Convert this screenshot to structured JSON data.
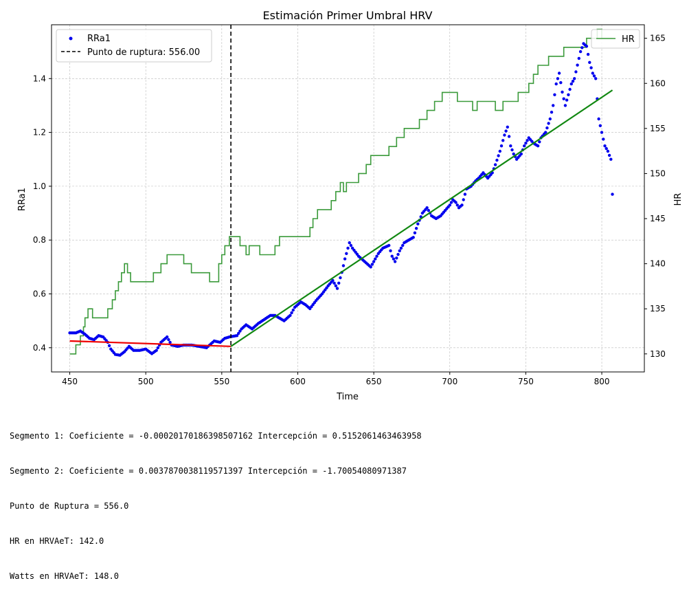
{
  "chart_data": {
    "type": "scatter",
    "title": "Estimación Primer Umbral HRV",
    "xlabel": "Time",
    "ylabel": "RRa1",
    "y2label": "HR",
    "xlim": [
      438,
      828
    ],
    "ylim": [
      0.31,
      1.6
    ],
    "y2lim": [
      128,
      166.5
    ],
    "xticks": [
      450,
      500,
      550,
      600,
      650,
      700,
      750,
      800
    ],
    "yticks": [
      0.4,
      0.6,
      0.8,
      1.0,
      1.2,
      1.4
    ],
    "yticklabels": [
      "0.4",
      "0.6",
      "0.8",
      "1.0",
      "1.2",
      "1.4"
    ],
    "y2ticks": [
      130,
      135,
      140,
      145,
      150,
      155,
      160,
      165
    ],
    "grid": true,
    "legend_left": {
      "placement": "upper-left",
      "entries": [
        "RRa1",
        "Punto de ruptura: 556.00"
      ]
    },
    "legend_right": {
      "placement": "upper-right",
      "entries": [
        "HR"
      ]
    },
    "colors": {
      "scatter": "#0000ee",
      "hr": "#3a9a3a",
      "segment1": "#ee0000",
      "segment2": "#118811",
      "breakpoint": "#000000"
    },
    "breakpoint": 556.0,
    "segment1": {
      "x": [
        450,
        556
      ],
      "y": [
        0.425,
        0.405
      ]
    },
    "segment2": {
      "x": [
        556,
        807
      ],
      "y": [
        0.405,
        1.357
      ]
    },
    "scatter_anchors": [
      [
        450,
        0.455
      ],
      [
        454,
        0.455
      ],
      [
        457,
        0.462
      ],
      [
        460,
        0.45
      ],
      [
        463,
        0.435
      ],
      [
        466,
        0.43
      ],
      [
        469,
        0.445
      ],
      [
        472,
        0.44
      ],
      [
        475,
        0.42
      ],
      [
        477,
        0.395
      ],
      [
        480,
        0.375
      ],
      [
        483,
        0.372
      ],
      [
        486,
        0.385
      ],
      [
        489,
        0.405
      ],
      [
        492,
        0.39
      ],
      [
        496,
        0.39
      ],
      [
        500,
        0.395
      ],
      [
        504,
        0.378
      ],
      [
        507,
        0.39
      ],
      [
        510,
        0.42
      ],
      [
        514,
        0.44
      ],
      [
        517,
        0.41
      ],
      [
        521,
        0.405
      ],
      [
        525,
        0.41
      ],
      [
        530,
        0.41
      ],
      [
        535,
        0.405
      ],
      [
        540,
        0.4
      ],
      [
        545,
        0.425
      ],
      [
        549,
        0.42
      ],
      [
        552,
        0.435
      ],
      [
        555,
        0.44
      ],
      [
        560,
        0.445
      ],
      [
        563,
        0.47
      ],
      [
        566,
        0.485
      ],
      [
        570,
        0.47
      ],
      [
        574,
        0.49
      ],
      [
        578,
        0.505
      ],
      [
        582,
        0.52
      ],
      [
        585,
        0.52
      ],
      [
        588,
        0.51
      ],
      [
        591,
        0.5
      ],
      [
        595,
        0.52
      ],
      [
        598,
        0.55
      ],
      [
        602,
        0.57
      ],
      [
        605,
        0.56
      ],
      [
        608,
        0.545
      ],
      [
        612,
        0.575
      ],
      [
        616,
        0.6
      ],
      [
        620,
        0.63
      ],
      [
        623,
        0.65
      ],
      [
        626,
        0.62
      ],
      [
        629,
        0.68
      ],
      [
        631,
        0.73
      ],
      [
        634,
        0.79
      ],
      [
        636,
        0.77
      ],
      [
        640,
        0.74
      ],
      [
        644,
        0.72
      ],
      [
        648,
        0.7
      ],
      [
        650,
        0.72
      ],
      [
        653,
        0.75
      ],
      [
        656,
        0.77
      ],
      [
        660,
        0.78
      ],
      [
        662,
        0.74
      ],
      [
        664,
        0.72
      ],
      [
        667,
        0.76
      ],
      [
        670,
        0.79
      ],
      [
        673,
        0.8
      ],
      [
        676,
        0.81
      ],
      [
        679,
        0.86
      ],
      [
        682,
        0.9
      ],
      [
        685,
        0.92
      ],
      [
        688,
        0.89
      ],
      [
        691,
        0.88
      ],
      [
        694,
        0.89
      ],
      [
        697,
        0.91
      ],
      [
        700,
        0.93
      ],
      [
        702,
        0.95
      ],
      [
        704,
        0.94
      ],
      [
        706,
        0.92
      ],
      [
        708,
        0.93
      ],
      [
        711,
        0.99
      ],
      [
        714,
        1.0
      ],
      [
        717,
        1.02
      ],
      [
        719,
        1.03
      ],
      [
        722,
        1.05
      ],
      [
        725,
        1.03
      ],
      [
        728,
        1.05
      ],
      [
        730,
        1.08
      ],
      [
        733,
        1.13
      ],
      [
        736,
        1.19
      ],
      [
        738,
        1.22
      ],
      [
        740,
        1.15
      ],
      [
        742,
        1.12
      ],
      [
        744,
        1.1
      ],
      [
        747,
        1.12
      ],
      [
        749,
        1.15
      ],
      [
        752,
        1.18
      ],
      [
        755,
        1.16
      ],
      [
        758,
        1.15
      ],
      [
        760,
        1.18
      ],
      [
        763,
        1.2
      ],
      [
        766,
        1.25
      ],
      [
        768,
        1.3
      ],
      [
        770,
        1.38
      ],
      [
        772,
        1.42
      ],
      [
        774,
        1.35
      ],
      [
        776,
        1.3
      ],
      [
        778,
        1.34
      ],
      [
        780,
        1.38
      ],
      [
        782,
        1.4
      ],
      [
        784,
        1.45
      ],
      [
        786,
        1.5
      ],
      [
        788,
        1.53
      ],
      [
        790,
        1.52
      ],
      [
        792,
        1.46
      ],
      [
        794,
        1.42
      ],
      [
        796,
        1.4
      ],
      [
        798,
        1.25
      ],
      [
        800,
        1.2
      ],
      [
        802,
        1.15
      ],
      [
        804,
        1.13
      ],
      [
        806,
        1.1
      ],
      [
        807,
        0.97
      ]
    ],
    "hr_steps": [
      [
        450,
        130
      ],
      [
        454,
        130
      ],
      [
        454,
        131
      ],
      [
        457,
        131
      ],
      [
        457,
        132
      ],
      [
        459,
        132
      ],
      [
        459,
        133
      ],
      [
        460,
        133
      ],
      [
        460,
        134
      ],
      [
        462,
        134
      ],
      [
        462,
        135
      ],
      [
        465,
        135
      ],
      [
        465,
        134
      ],
      [
        475,
        134
      ],
      [
        475,
        135
      ],
      [
        478,
        135
      ],
      [
        478,
        136
      ],
      [
        480,
        136
      ],
      [
        480,
        137
      ],
      [
        482,
        137
      ],
      [
        482,
        138
      ],
      [
        484,
        138
      ],
      [
        484,
        139
      ],
      [
        486,
        139
      ],
      [
        486,
        140
      ],
      [
        488,
        140
      ],
      [
        488,
        139
      ],
      [
        490,
        139
      ],
      [
        490,
        138
      ],
      [
        505,
        138
      ],
      [
        505,
        139
      ],
      [
        510,
        139
      ],
      [
        510,
        140
      ],
      [
        514,
        140
      ],
      [
        514,
        141
      ],
      [
        525,
        141
      ],
      [
        525,
        140
      ],
      [
        530,
        140
      ],
      [
        530,
        139
      ],
      [
        542,
        139
      ],
      [
        542,
        138
      ],
      [
        548,
        138
      ],
      [
        548,
        140
      ],
      [
        550,
        140
      ],
      [
        550,
        141
      ],
      [
        552,
        141
      ],
      [
        552,
        142
      ],
      [
        555,
        142
      ],
      [
        555,
        143
      ],
      [
        562,
        143
      ],
      [
        562,
        142
      ],
      [
        566,
        142
      ],
      [
        566,
        141
      ],
      [
        568,
        141
      ],
      [
        568,
        142
      ],
      [
        575,
        142
      ],
      [
        575,
        141
      ],
      [
        585,
        141
      ],
      [
        585,
        142
      ],
      [
        588,
        142
      ],
      [
        588,
        143
      ],
      [
        608,
        143
      ],
      [
        608,
        144
      ],
      [
        610,
        144
      ],
      [
        610,
        145
      ],
      [
        613,
        145
      ],
      [
        613,
        146
      ],
      [
        622,
        146
      ],
      [
        622,
        147
      ],
      [
        625,
        147
      ],
      [
        625,
        148
      ],
      [
        628,
        148
      ],
      [
        628,
        149
      ],
      [
        630,
        149
      ],
      [
        630,
        148
      ],
      [
        632,
        148
      ],
      [
        632,
        149
      ],
      [
        640,
        149
      ],
      [
        640,
        150
      ],
      [
        645,
        150
      ],
      [
        645,
        151
      ],
      [
        648,
        151
      ],
      [
        648,
        152
      ],
      [
        660,
        152
      ],
      [
        660,
        153
      ],
      [
        665,
        153
      ],
      [
        665,
        154
      ],
      [
        670,
        154
      ],
      [
        670,
        155
      ],
      [
        680,
        155
      ],
      [
        680,
        156
      ],
      [
        685,
        156
      ],
      [
        685,
        157
      ],
      [
        690,
        157
      ],
      [
        690,
        158
      ],
      [
        695,
        158
      ],
      [
        695,
        159
      ],
      [
        705,
        159
      ],
      [
        705,
        158
      ],
      [
        715,
        158
      ],
      [
        715,
        157
      ],
      [
        718,
        157
      ],
      [
        718,
        158
      ],
      [
        730,
        158
      ],
      [
        730,
        157
      ],
      [
        735,
        157
      ],
      [
        735,
        158
      ],
      [
        745,
        158
      ],
      [
        745,
        159
      ],
      [
        752,
        159
      ],
      [
        752,
        160
      ],
      [
        755,
        160
      ],
      [
        755,
        161
      ],
      [
        758,
        161
      ],
      [
        758,
        162
      ],
      [
        765,
        162
      ],
      [
        765,
        163
      ],
      [
        775,
        163
      ],
      [
        775,
        164
      ],
      [
        790,
        164
      ],
      [
        790,
        165
      ],
      [
        797,
        165
      ],
      [
        797,
        166
      ],
      [
        800,
        166
      ],
      [
        800,
        165
      ],
      [
        807,
        165
      ]
    ]
  },
  "output_lines": [
    "Segmento 1: Coeficiente = -0.00020170186398507162 Intercepción = 0.5152061463463958",
    "Segmento 2: Coeficiente = 0.0037870038119571397 Intercepción = -1.70054080971387",
    "Punto de Ruptura = 556.0",
    "HR en HRVAeT: 142.0",
    "Watts en HRVAeT: 148.0"
  ]
}
